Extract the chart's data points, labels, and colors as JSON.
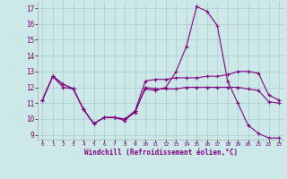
{
  "xlabel": "Windchill (Refroidissement éolien,°C)",
  "background_color": "#cce8e8",
  "line_color": "#800080",
  "grid_color": "#aacccc",
  "xlim": [
    -0.5,
    23.5
  ],
  "ylim": [
    8.7,
    17.4
  ],
  "yticks": [
    9,
    10,
    11,
    12,
    13,
    14,
    15,
    16,
    17
  ],
  "xticks": [
    0,
    1,
    2,
    3,
    4,
    5,
    6,
    7,
    8,
    9,
    10,
    11,
    12,
    13,
    14,
    15,
    16,
    17,
    18,
    19,
    20,
    21,
    22,
    23
  ],
  "line1_x": [
    0,
    1,
    2,
    3,
    4,
    5,
    6,
    7,
    8,
    9,
    10,
    11,
    12,
    13,
    14,
    15,
    16,
    17,
    18,
    19,
    20,
    21,
    22,
    23
  ],
  "line1_y": [
    11.2,
    12.7,
    12.2,
    11.9,
    10.6,
    9.7,
    10.1,
    10.1,
    9.9,
    10.5,
    11.9,
    11.8,
    12.0,
    13.0,
    14.6,
    17.1,
    16.8,
    15.9,
    12.4,
    11.0,
    9.6,
    9.1,
    8.8,
    8.8
  ],
  "line2_x": [
    0,
    1,
    2,
    3,
    4,
    5,
    6,
    7,
    8,
    9,
    10,
    11,
    12,
    13,
    14,
    15,
    16,
    17,
    18,
    19,
    20,
    21,
    22,
    23
  ],
  "line2_y": [
    11.2,
    12.7,
    12.2,
    11.9,
    10.6,
    9.7,
    10.1,
    10.1,
    10.0,
    10.5,
    12.4,
    12.5,
    12.5,
    12.6,
    12.6,
    12.6,
    12.7,
    12.7,
    12.8,
    13.0,
    13.0,
    12.9,
    11.5,
    11.2
  ],
  "line3_x": [
    0,
    1,
    2,
    3,
    4,
    5,
    6,
    7,
    8,
    9,
    10,
    11,
    12,
    13,
    14,
    15,
    16,
    17,
    18,
    19,
    20,
    21,
    22,
    23
  ],
  "line3_y": [
    11.2,
    12.7,
    12.0,
    11.9,
    10.6,
    9.7,
    10.1,
    10.1,
    10.0,
    10.4,
    12.0,
    11.9,
    11.9,
    11.9,
    12.0,
    12.0,
    12.0,
    12.0,
    12.0,
    12.0,
    11.9,
    11.8,
    11.1,
    11.0
  ]
}
